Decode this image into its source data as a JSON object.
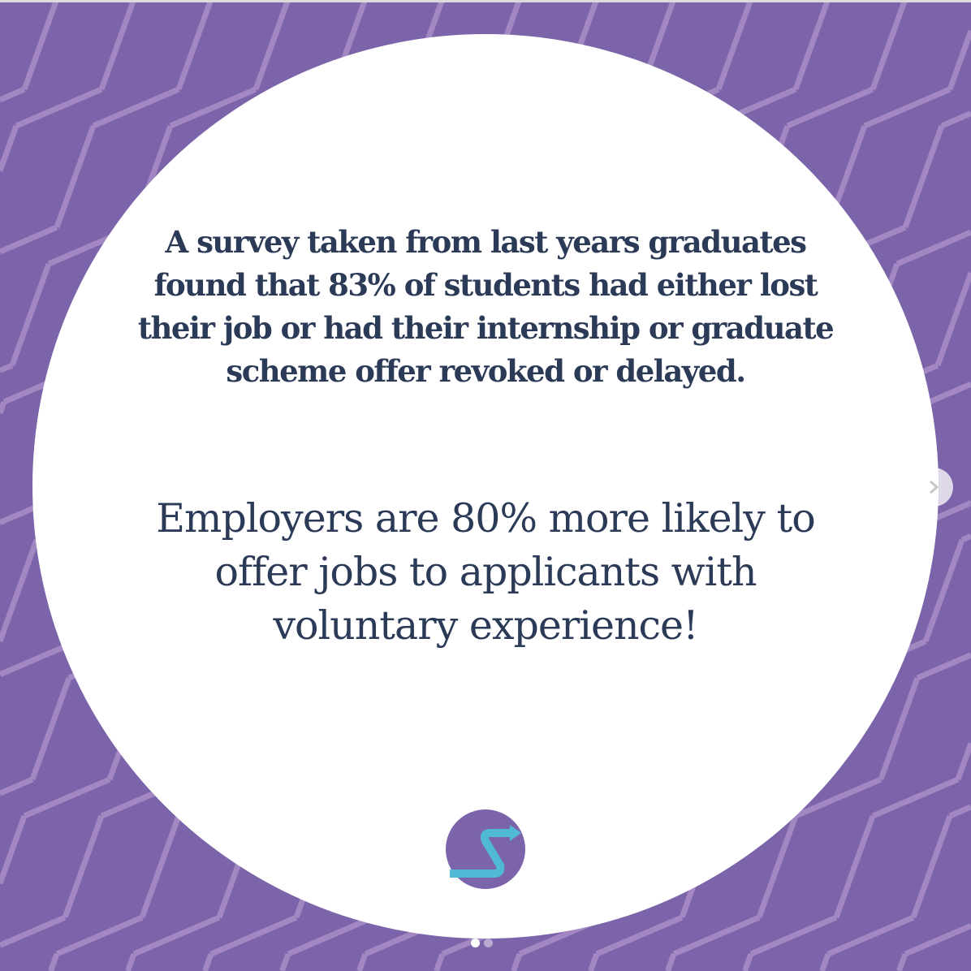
{
  "colors": {
    "background": "#7b64a9",
    "stripe": "#a287c2",
    "text": "#2b3a57",
    "logo_bg": "#7b64a9",
    "logo_mark": "#4fb9d6"
  },
  "post": {
    "paragraph_1": "A survey taken from last years graduates found that 83% of students had either lost their job or had their internship or graduate scheme offer revoked or delayed.",
    "paragraph_2": "Employers are 80% more likely to offer jobs to applicants with voluntary experience!"
  },
  "logo": {
    "icon": "s-arrow-logo"
  },
  "carousel": {
    "next_icon": "chevron-right-icon",
    "slide_count": 2,
    "active_slide": 1
  }
}
